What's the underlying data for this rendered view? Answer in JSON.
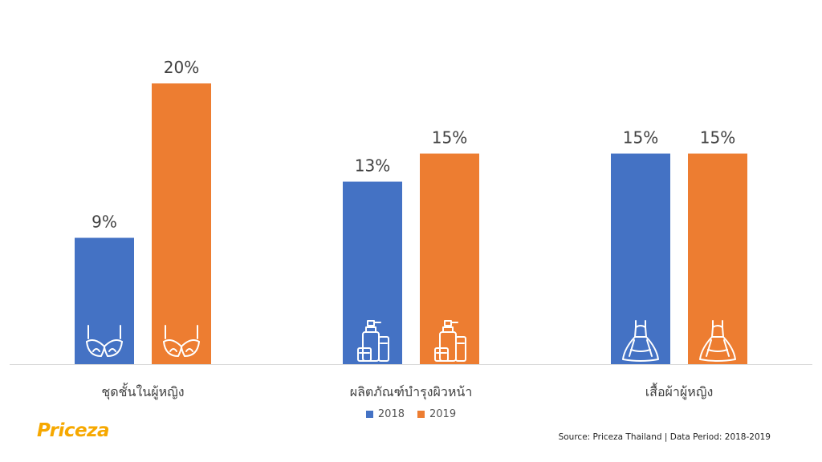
{
  "chart_data": {
    "type": "bar",
    "categories": [
      "ชุดชั้นในผู้หญิง",
      "ผลิตภัณฑ์บำรุงผิวหน้า",
      "เสื้อผ้าผู้หญิง"
    ],
    "series": [
      {
        "name": "2018",
        "values": [
          9,
          13,
          15
        ],
        "labels": [
          "9%",
          "13%",
          "15%"
        ],
        "color": "#4472c4"
      },
      {
        "name": "2019",
        "values": [
          20,
          15,
          15
        ],
        "labels": [
          "20%",
          "15%",
          "15%"
        ],
        "color": "#ed7d31"
      }
    ],
    "category_icons": [
      "bra-icon",
      "skincare-bottles-icon",
      "dress-icon"
    ],
    "ylim": [
      0,
      20
    ],
    "grid": false,
    "legend_position": "bottom"
  },
  "brand": {
    "logo_text": "Priceza"
  },
  "footer": {
    "source": "Source: Priceza Thailand | Data Period: 2018-2019"
  }
}
